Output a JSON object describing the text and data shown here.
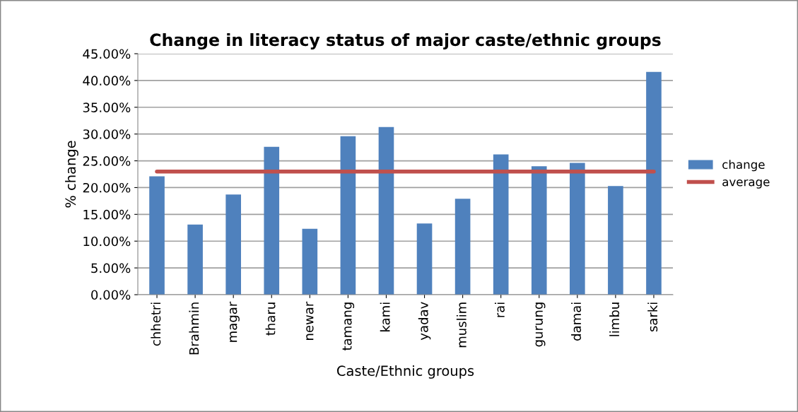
{
  "chart_data": {
    "type": "bar",
    "title": "Change in literacy status of major caste/ethnic groups",
    "xlabel": "Caste/Ethnic groups",
    "ylabel": "% change",
    "categories": [
      "chhetri",
      "Brahmin",
      "magar",
      "tharu",
      "newar",
      "tamang",
      "kami",
      "yadav",
      "muslim",
      "rai",
      "gurung",
      "damai",
      "limbu",
      "sarki"
    ],
    "series": [
      {
        "name": "change",
        "color": "#4f81bd",
        "values": [
          22.1,
          13.1,
          18.7,
          27.6,
          12.3,
          29.6,
          31.3,
          13.3,
          17.9,
          26.2,
          24.0,
          24.6,
          20.3,
          41.6
        ]
      },
      {
        "name": "average",
        "type": "line",
        "color": "#c0504d",
        "values": [
          23.0,
          23.0,
          23.0,
          23.0,
          23.0,
          23.0,
          23.0,
          23.0,
          23.0,
          23.0,
          23.0,
          23.0,
          23.0,
          23.0
        ]
      }
    ],
    "ylim": [
      0,
      45
    ],
    "yticks": [
      {
        "value": 0,
        "label": "0.00%"
      },
      {
        "value": 5,
        "label": "5.00%"
      },
      {
        "value": 10,
        "label": "10.00%"
      },
      {
        "value": 15,
        "label": "15.00%"
      },
      {
        "value": 20,
        "label": "20.00%"
      },
      {
        "value": 25,
        "label": "25.00%"
      },
      {
        "value": 30,
        "label": "30.00%"
      },
      {
        "value": 35,
        "label": "35.00%"
      },
      {
        "value": 40,
        "label": "40.00%"
      },
      {
        "value": 45,
        "label": "45.00%"
      }
    ],
    "grid": "y",
    "legend": "right"
  }
}
